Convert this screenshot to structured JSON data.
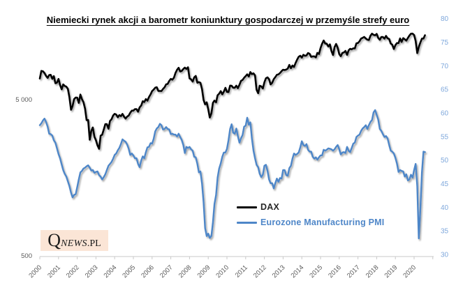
{
  "title": "Niemiecki rynek akcji a barometr koniunktury gospodarczej w przemyśle strefy euro",
  "logo": {
    "q": "Q",
    "news": "NEWS",
    "pl": ".PL"
  },
  "legend": [
    {
      "label": "DAX",
      "color": "#000000",
      "label_color": "#262626"
    },
    {
      "label": "Eurozone Manufacturing PMI",
      "color": "#4E86C8",
      "label_color": "#4E86C8"
    }
  ],
  "colors": {
    "dax_line": "#000000",
    "pmi_line": "#4E86C8",
    "right_axis_labels": "#7FA8DC",
    "left_axis_labels": "#595959",
    "x_axis_labels": "#595959",
    "axis_line": "#C9C9C9",
    "logo_background": "#FBE5D6",
    "background": "#FFFFFF"
  },
  "chart_data": {
    "type": "line",
    "title": "Niemiecki rynek akcji a barometr koniunktury gospodarczej w przemyśle strefy euro",
    "frequency": "monthly",
    "start": "2000-01",
    "end": "2020-08",
    "grid": false,
    "legend_position": "inside-lower-right",
    "x_tick_labels": [
      "2000",
      "2001",
      "2002",
      "2003",
      "2004",
      "2005",
      "2006",
      "2007",
      "2008",
      "2009",
      "2010",
      "2011",
      "2012",
      "2013",
      "2014",
      "2015",
      "2016",
      "2017",
      "2018",
      "2019",
      "2020"
    ],
    "left_axis": {
      "series": "DAX",
      "scale": "log",
      "ticks": [
        {
          "label": "5 000",
          "value": 5000
        },
        {
          "label": "500",
          "value": 500
        }
      ]
    },
    "right_axis": {
      "series": "Eurozone Manufacturing PMI",
      "scale": "linear",
      "min": 30,
      "max": 80,
      "tick_step": 5,
      "ticks": [
        30,
        35,
        40,
        45,
        50,
        55,
        60,
        65,
        70,
        75,
        80
      ]
    },
    "series": [
      {
        "name": "DAX",
        "axis": "left",
        "color": "#000000",
        "values": [
          6835,
          7644,
          7599,
          7414,
          7109,
          6898,
          7190,
          7216,
          6798,
          7077,
          6372,
          6434,
          6795,
          6208,
          5830,
          6264,
          6123,
          6058,
          5861,
          5188,
          4308,
          4559,
          5039,
          5160,
          5154,
          4770,
          5397,
          5042,
          4818,
          4383,
          3701,
          3712,
          2769,
          3153,
          3320,
          2893,
          2748,
          2547,
          2423,
          2942,
          2982,
          3221,
          3487,
          3484,
          3257,
          3655,
          3746,
          3965,
          4058,
          4018,
          3857,
          3985,
          3921,
          4053,
          3896,
          3786,
          3893,
          3960,
          4126,
          4256,
          4254,
          4350,
          4348,
          4184,
          4460,
          4586,
          4886,
          4830,
          5044,
          4929,
          5193,
          5408,
          5674,
          5796,
          5970,
          6009,
          5692,
          5683,
          5682,
          5859,
          6004,
          6269,
          6309,
          6597,
          6789,
          6715,
          6917,
          7409,
          7766,
          8007,
          7584,
          7638,
          7861,
          8019,
          7870,
          8067,
          6851,
          6748,
          6535,
          6948,
          7096,
          6418,
          6480,
          6422,
          5831,
          4987,
          4669,
          4810,
          4338,
          3843,
          4085,
          4769,
          4940,
          4809,
          5332,
          5464,
          5675,
          5414,
          5626,
          5957,
          5609,
          5598,
          6154,
          6136,
          5964,
          5966,
          6148,
          5925,
          6229,
          6601,
          6688,
          6914,
          7077,
          7272,
          7041,
          7514,
          7294,
          7376,
          7159,
          5785,
          5502,
          6141,
          6088,
          5898,
          6459,
          6856,
          6947,
          6761,
          6264,
          6416,
          6772,
          6971,
          7216,
          7260,
          7405,
          7612,
          7776,
          7742,
          7795,
          7914,
          8349,
          7959,
          8276,
          8103,
          8594,
          9034,
          9405,
          9552,
          9306,
          9692,
          9556,
          9603,
          9943,
          9833,
          9407,
          9470,
          9474,
          9327,
          9981,
          9806,
          10694,
          11402,
          11966,
          11454,
          11414,
          10945,
          11309,
          10259,
          9660,
          10850,
          11382,
          10743,
          9798,
          9495,
          9966,
          10039,
          10263,
          9680,
          10337,
          10593,
          10511,
          10665,
          10640,
          11481,
          11535,
          11834,
          12313,
          12438,
          12615,
          12325,
          12118,
          12056,
          12829,
          13230,
          13024,
          12918,
          13189,
          12436,
          12097,
          12612,
          12604,
          12306,
          12806,
          12364,
          12247,
          11447,
          11257,
          10559,
          11173,
          11516,
          11526,
          12344,
          11727,
          12399,
          12189,
          11939,
          12428,
          12867,
          13236,
          13249,
          12982,
          11890,
          9936,
          10862,
          11587,
          12311,
          12313,
          12945
        ]
      },
      {
        "name": "Eurozone Manufacturing PMI",
        "axis": "right",
        "color": "#4E86C8",
        "values": [
          57.4,
          57.8,
          58.4,
          58.8,
          58.1,
          57.1,
          55.6,
          55.5,
          55.2,
          54.2,
          53.7,
          52.5,
          51.3,
          50.4,
          49.1,
          47.9,
          47.1,
          46.5,
          45.5,
          44.5,
          43.1,
          42.1,
          42.6,
          42.8,
          44.3,
          45.9,
          47.4,
          47.7,
          48.2,
          48.4,
          48.7,
          48.9,
          48.4,
          47.8,
          47.9,
          47.3,
          47.5,
          47.6,
          46.8,
          46.5,
          45.9,
          46.4,
          47.0,
          47.9,
          48.8,
          49.2,
          49.6,
          50.3,
          51.1,
          51.4,
          52.1,
          52.6,
          53.4,
          54.4,
          54.1,
          53.9,
          53.3,
          52.4,
          51.1,
          51.4,
          51.0,
          50.4,
          50.4,
          49.2,
          48.5,
          49.9,
          50.8,
          50.4,
          51.7,
          52.7,
          52.8,
          53.6,
          53.5,
          54.5,
          56.1,
          56.7,
          57.0,
          57.7,
          57.4,
          56.5,
          56.6,
          57.0,
          56.6,
          56.5,
          55.5,
          55.6,
          55.4,
          55.4,
          55.0,
          55.6,
          54.9,
          54.3,
          53.2,
          51.5,
          52.8,
          52.6,
          52.8,
          52.3,
          52.0,
          50.7,
          50.6,
          49.2,
          47.4,
          47.6,
          45.0,
          41.1,
          35.6,
          33.9,
          34.4,
          33.5,
          33.9,
          36.8,
          40.7,
          42.6,
          46.3,
          48.2,
          49.3,
          50.7,
          51.6,
          51.6,
          52.4,
          54.2,
          56.6,
          57.6,
          55.8,
          55.6,
          56.7,
          55.1,
          53.7,
          54.6,
          55.3,
          57.1,
          57.3,
          59.0,
          57.5,
          58.0,
          54.6,
          52.0,
          50.4,
          49.0,
          48.5,
          47.1,
          46.4,
          46.9,
          48.8,
          49.0,
          47.7,
          45.9,
          45.1,
          45.1,
          44.0,
          45.1,
          46.1,
          45.4,
          46.2,
          46.1,
          47.9,
          47.9,
          46.8,
          46.7,
          48.3,
          48.8,
          50.3,
          51.4,
          51.1,
          51.3,
          51.6,
          52.7,
          54.0,
          53.2,
          53.0,
          53.4,
          52.2,
          51.8,
          51.8,
          50.7,
          50.3,
          50.6,
          50.1,
          50.6,
          51.0,
          51.0,
          52.2,
          52.0,
          52.2,
          52.5,
          52.4,
          52.3,
          52.0,
          52.3,
          52.8,
          53.2,
          52.3,
          51.2,
          51.6,
          51.7,
          51.5,
          52.8,
          52.0,
          51.7,
          52.6,
          53.5,
          53.7,
          54.9,
          55.2,
          55.4,
          56.2,
          56.7,
          57.0,
          57.4,
          56.6,
          57.4,
          58.1,
          58.5,
          60.1,
          60.6,
          59.6,
          58.6,
          56.6,
          56.2,
          55.5,
          54.9,
          55.1,
          54.6,
          53.2,
          52.0,
          51.8,
          51.4,
          50.5,
          49.3,
          47.5,
          47.9,
          47.7,
          47.6,
          46.5,
          47.0,
          45.7,
          45.9,
          46.9,
          46.3,
          47.9,
          49.2,
          44.5,
          33.4,
          39.4,
          47.4,
          51.8,
          51.7
        ]
      }
    ]
  }
}
